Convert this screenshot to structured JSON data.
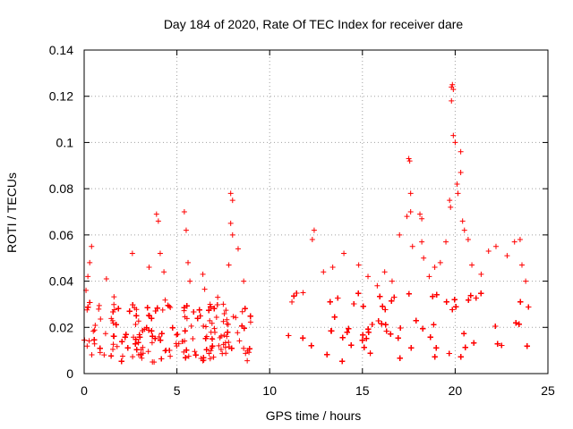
{
  "chart_data": {
    "type": "scatter",
    "title": "Day 184 of 2020, Rate Of TEC Index for receiver dare",
    "xlabel": "GPS time / hours",
    "ylabel": "ROTI / TECUs",
    "xlim": [
      0,
      25
    ],
    "ylim": [
      0,
      0.14
    ],
    "xticks": [
      0,
      5,
      10,
      15,
      20,
      25
    ],
    "yticks": [
      0,
      0.02,
      0.04,
      0.06,
      0.08,
      0.1,
      0.12,
      0.14
    ],
    "xtick_labels": [
      "0",
      "5",
      "10",
      "15",
      "20",
      "25"
    ],
    "ytick_labels": [
      "0",
      "0.02",
      "0.04",
      "0.06",
      "0.08",
      "0.1",
      "0.12",
      "0.14"
    ],
    "grid": true,
    "marker": "+",
    "series": [
      {
        "name": "ROTI",
        "color": "#ff0000",
        "points": [
          [
            0.3,
            0.048
          ],
          [
            0.4,
            0.055
          ],
          [
            0.2,
            0.042
          ],
          [
            0.1,
            0.036
          ],
          [
            1.2,
            0.041
          ],
          [
            2.6,
            0.052
          ],
          [
            3.5,
            0.046
          ],
          [
            3.9,
            0.069
          ],
          [
            4.0,
            0.066
          ],
          [
            4.1,
            0.052
          ],
          [
            4.3,
            0.044
          ],
          [
            5.4,
            0.07
          ],
          [
            5.5,
            0.062
          ],
          [
            5.7,
            0.04
          ],
          [
            5.6,
            0.048
          ],
          [
            6.4,
            0.043
          ],
          [
            7.2,
            0.033
          ],
          [
            7.5,
            0.03
          ],
          [
            7.9,
            0.078
          ],
          [
            8.0,
            0.075
          ],
          [
            7.9,
            0.065
          ],
          [
            8.0,
            0.06
          ],
          [
            7.8,
            0.047
          ],
          [
            8.3,
            0.054
          ],
          [
            8.6,
            0.04
          ],
          [
            11.2,
            0.031
          ],
          [
            11.8,
            0.035
          ],
          [
            12.4,
            0.062
          ],
          [
            12.3,
            0.058
          ],
          [
            12.9,
            0.044
          ],
          [
            13.4,
            0.046
          ],
          [
            14.0,
            0.052
          ],
          [
            14.8,
            0.047
          ],
          [
            15.3,
            0.042
          ],
          [
            15.8,
            0.038
          ],
          [
            16.2,
            0.044
          ],
          [
            16.6,
            0.04
          ],
          [
            17.0,
            0.06
          ],
          [
            17.4,
            0.068
          ],
          [
            17.5,
            0.093
          ],
          [
            17.55,
            0.092
          ],
          [
            17.6,
            0.078
          ],
          [
            17.6,
            0.07
          ],
          [
            17.7,
            0.055
          ],
          [
            18.1,
            0.069
          ],
          [
            18.2,
            0.067
          ],
          [
            18.2,
            0.057
          ],
          [
            18.3,
            0.05
          ],
          [
            18.6,
            0.042
          ],
          [
            18.9,
            0.046
          ],
          [
            19.2,
            0.048
          ],
          [
            19.5,
            0.057
          ],
          [
            19.7,
            0.075
          ],
          [
            19.75,
            0.072
          ],
          [
            19.8,
            0.124
          ],
          [
            19.85,
            0.125
          ],
          [
            19.9,
            0.123
          ],
          [
            19.8,
            0.118
          ],
          [
            19.9,
            0.103
          ],
          [
            20.0,
            0.1
          ],
          [
            20.1,
            0.082
          ],
          [
            20.15,
            0.078
          ],
          [
            20.3,
            0.087
          ],
          [
            20.3,
            0.096
          ],
          [
            20.4,
            0.066
          ],
          [
            20.5,
            0.062
          ],
          [
            20.7,
            0.058
          ],
          [
            20.9,
            0.047
          ],
          [
            21.4,
            0.043
          ],
          [
            21.8,
            0.053
          ],
          [
            22.2,
            0.055
          ],
          [
            22.8,
            0.051
          ],
          [
            23.2,
            0.057
          ],
          [
            23.5,
            0.058
          ],
          [
            23.6,
            0.047
          ],
          [
            23.8,
            0.04
          ]
        ],
        "dense_bands": [
          {
            "x": [
              0.0,
              9.0
            ],
            "y": [
              0.005,
              0.03
            ]
          },
          {
            "x": [
              11.0,
              24.0
            ],
            "y": [
              0.005,
              0.035
            ]
          }
        ]
      }
    ]
  }
}
